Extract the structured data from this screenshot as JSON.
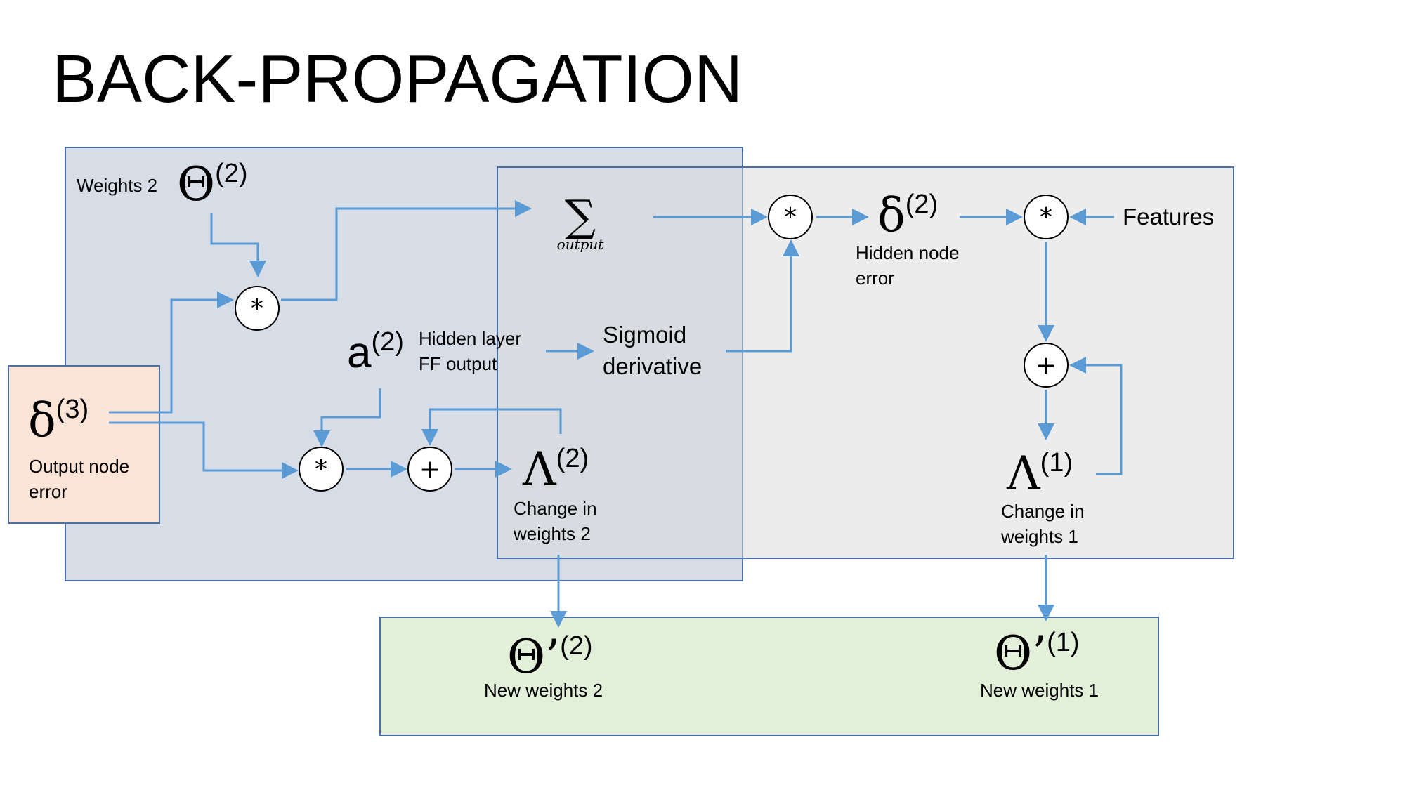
{
  "title": "BACK-PROPAGATION",
  "weights2": {
    "label": "Weights 2",
    "symbol": "Θ",
    "sup": "(2)"
  },
  "output_error": {
    "symbol": "δ",
    "sup": "(3)",
    "label_line1": "Output node",
    "label_line2": "error"
  },
  "activation": {
    "symbol": "a",
    "sup": "(2)",
    "label_line1": "Hidden layer",
    "label_line2": "FF output"
  },
  "sum": {
    "symbol": "∑",
    "sub": "output"
  },
  "sigmoid": {
    "line1": "Sigmoid",
    "line2": "derivative"
  },
  "hidden_error": {
    "symbol": "δ",
    "sup": "(2)",
    "label_line1": "Hidden node",
    "label_line2": "error"
  },
  "features": {
    "label": "Features"
  },
  "change2": {
    "symbol": "Λ",
    "sup": "(2)",
    "label_line1": "Change in",
    "label_line2": "weights 2"
  },
  "change1": {
    "symbol": "Λ",
    "sup": "(1)",
    "label_line1": "Change in",
    "label_line2": "weights 1"
  },
  "new2": {
    "symbol": "Θ’",
    "sup": "(2)",
    "label": "New weights 2"
  },
  "new1": {
    "symbol": "Θ’",
    "sup": "(1)",
    "label": "New weights 1"
  },
  "operators": {
    "multiply": "*",
    "add": "+"
  },
  "colors": {
    "arrow": "#5b9bd5",
    "box_border": "#4a6fa5"
  }
}
